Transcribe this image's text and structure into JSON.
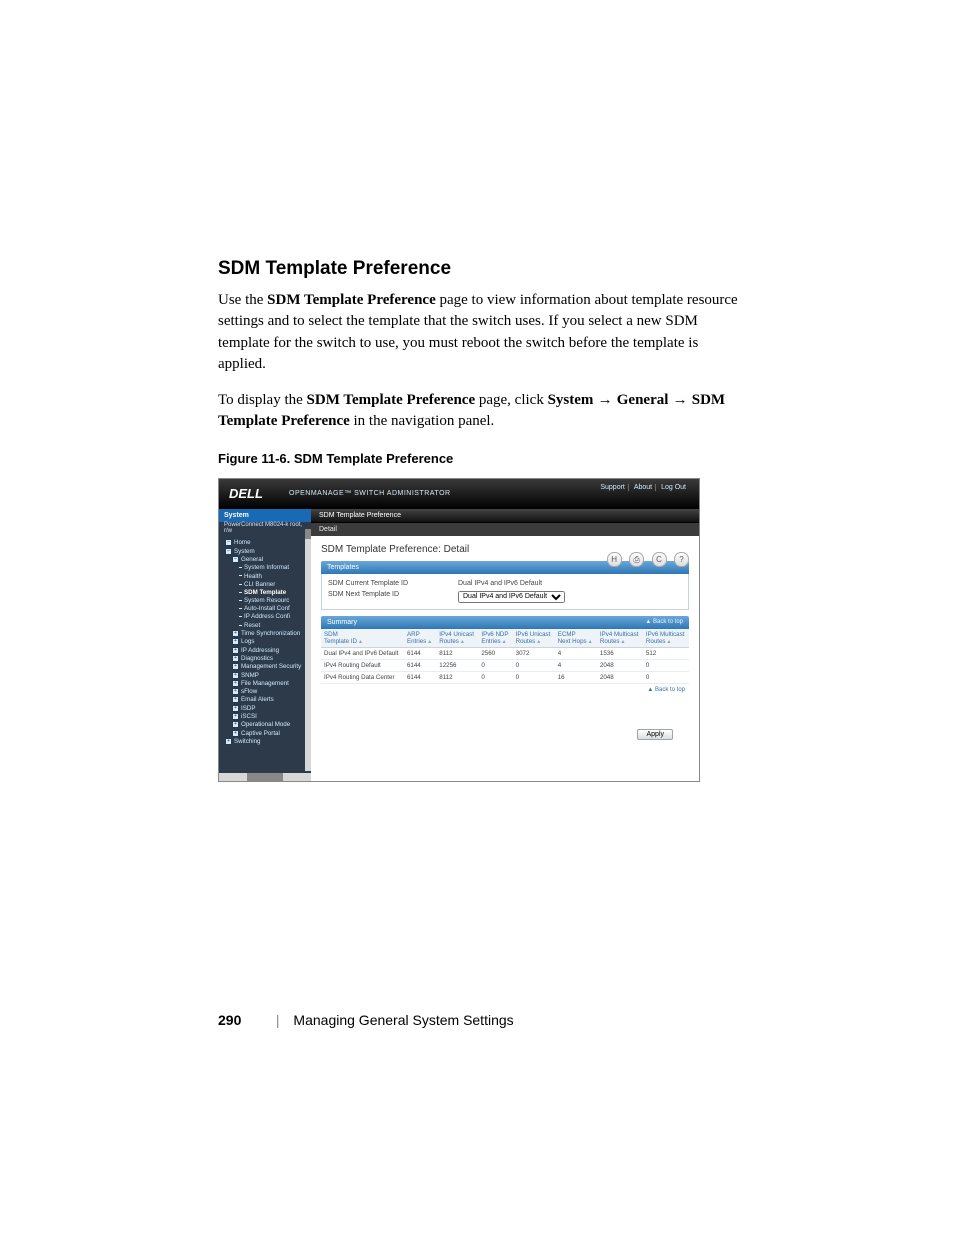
{
  "heading": "SDM Template Preference",
  "para1_a": "Use the ",
  "para1_b": "SDM Template Preference",
  "para1_c": " page to view information about template resource settings and to select the template that the switch uses. If you select a new SDM template for the switch to use, you must reboot the switch before the template is applied.",
  "para2_a": "To display the ",
  "para2_b": "SDM Template Preference",
  "para2_c": " page, click ",
  "para2_d": "System",
  "para2_e": " → ",
  "para2_f": "General",
  "para2_g": " → ",
  "para2_h": "SDM Template Preference",
  "para2_i": " in the navigation panel.",
  "fig_caption": "Figure 11-6.    SDM Template Preference",
  "footer_page": "290",
  "footer_title": "Managing General System Settings",
  "shot": {
    "logo": "DELL",
    "subtitle": "OPENMANAGE™ SWITCH ADMINISTRATOR",
    "toplinks": [
      "Support",
      "About",
      "Log Out"
    ],
    "nav_head": "System",
    "nav_sub": "PowerConnect M8024-k\nroot, r/w",
    "nav_items": [
      {
        "t": "Home",
        "box": "–",
        "lvl": 0
      },
      {
        "t": "System",
        "box": "–",
        "lvl": 0
      },
      {
        "t": "General",
        "box": "–",
        "lvl": 1
      },
      {
        "t": "System Informat",
        "lvl": 2
      },
      {
        "t": "Health",
        "lvl": 2
      },
      {
        "t": "CLI Banner",
        "lvl": 2
      },
      {
        "t": "SDM Template",
        "lvl": 2,
        "sel": true
      },
      {
        "t": "System Resourc",
        "lvl": 2
      },
      {
        "t": "Auto-Install Conf",
        "lvl": 2
      },
      {
        "t": "IP Address Confi",
        "lvl": 2
      },
      {
        "t": "Reset",
        "lvl": 2
      },
      {
        "t": "Time Synchronization",
        "box": "+",
        "lvl": 1
      },
      {
        "t": "Logs",
        "box": "+",
        "lvl": 1
      },
      {
        "t": "IP Addressing",
        "box": "+",
        "lvl": 1
      },
      {
        "t": "Diagnostics",
        "box": "+",
        "lvl": 1
      },
      {
        "t": "Management Security",
        "box": "+",
        "lvl": 1
      },
      {
        "t": "SNMP",
        "box": "+",
        "lvl": 1
      },
      {
        "t": "File Management",
        "box": "+",
        "lvl": 1
      },
      {
        "t": "sFlow",
        "box": "+",
        "lvl": 1
      },
      {
        "t": "Email Alerts",
        "box": "+",
        "lvl": 1
      },
      {
        "t": "ISDP",
        "box": "+",
        "lvl": 1
      },
      {
        "t": "iSCSI",
        "box": "+",
        "lvl": 1
      },
      {
        "t": "Operational Mode",
        "box": "+",
        "lvl": 1
      },
      {
        "t": "Captive Portal",
        "box": "+",
        "lvl": 1
      },
      {
        "t": "Switching",
        "box": "+",
        "lvl": 0
      }
    ],
    "crumb": "SDM Template Preference",
    "crumb2": "Detail",
    "panel_title": "SDM Template Preference: Detail",
    "toolbar_icons": [
      "save-icon",
      "print-icon",
      "refresh-icon",
      "help-icon"
    ],
    "toolbar_glyphs": [
      "H",
      "⎙",
      "C",
      "?"
    ],
    "templates_head": "Templates",
    "current_label": "SDM Current Template ID",
    "current_value": "Dual IPv4 and IPv6 Default",
    "next_label": "SDM Next Template ID",
    "next_options": [
      "Dual IPv4 and IPv6 Default"
    ],
    "summary_head": "Summary",
    "back_top": "▲ Back to top",
    "columns": [
      "SDM\nTemplate ID",
      "ARP\nEntries",
      "IPv4 Unicast\nRoutes",
      "IPv6 NDP\nEntries",
      "IPv6 Unicast\nRoutes",
      "ECMP\nNext Hops",
      "IPv4 Multicast\nRoutes",
      "IPv6 Multicast\nRoutes"
    ],
    "rows": [
      [
        "Dual IPv4 and IPv6 Default",
        "6144",
        "8112",
        "2560",
        "3072",
        "4",
        "1536",
        "512"
      ],
      [
        "IPv4 Routing Default",
        "6144",
        "12256",
        "0",
        "0",
        "4",
        "2048",
        "0"
      ],
      [
        "IPv4 Routing Data Center",
        "6144",
        "8112",
        "0",
        "0",
        "16",
        "2048",
        "0"
      ]
    ],
    "apply": "Apply"
  },
  "colors": {
    "topbar_grad_from": "#3a3a3a",
    "topbar_grad_to": "#000000",
    "nav_bg": "#2d3a4a",
    "nav_head_bg": "#1a69b5",
    "section_grad_from": "#6aa7d9",
    "section_grad_to": "#2f77b5",
    "link": "#3a6fa8"
  }
}
